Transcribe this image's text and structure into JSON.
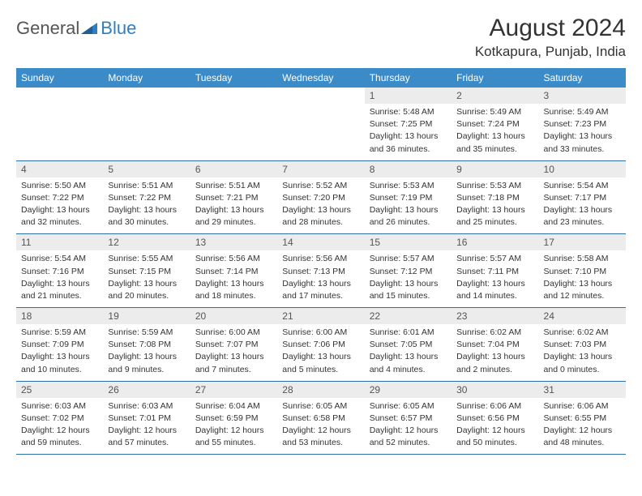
{
  "brand": {
    "part1": "General",
    "part2": "Blue"
  },
  "title": "August 2024",
  "location": "Kotkapura, Punjab, India",
  "colors": {
    "header_bg": "#3b8bc9",
    "header_text": "#ffffff",
    "row_divider": "#2f6fa8",
    "daynum_bg": "#ececec",
    "body_text": "#333333",
    "brand_gray": "#555555",
    "brand_blue": "#2f7fbf"
  },
  "day_labels": [
    "Sunday",
    "Monday",
    "Tuesday",
    "Wednesday",
    "Thursday",
    "Friday",
    "Saturday"
  ],
  "weeks": [
    [
      null,
      null,
      null,
      null,
      {
        "n": "1",
        "sr": "Sunrise: 5:48 AM",
        "ss": "Sunset: 7:25 PM",
        "dl1": "Daylight: 13 hours",
        "dl2": "and 36 minutes."
      },
      {
        "n": "2",
        "sr": "Sunrise: 5:49 AM",
        "ss": "Sunset: 7:24 PM",
        "dl1": "Daylight: 13 hours",
        "dl2": "and 35 minutes."
      },
      {
        "n": "3",
        "sr": "Sunrise: 5:49 AM",
        "ss": "Sunset: 7:23 PM",
        "dl1": "Daylight: 13 hours",
        "dl2": "and 33 minutes."
      }
    ],
    [
      {
        "n": "4",
        "sr": "Sunrise: 5:50 AM",
        "ss": "Sunset: 7:22 PM",
        "dl1": "Daylight: 13 hours",
        "dl2": "and 32 minutes."
      },
      {
        "n": "5",
        "sr": "Sunrise: 5:51 AM",
        "ss": "Sunset: 7:22 PM",
        "dl1": "Daylight: 13 hours",
        "dl2": "and 30 minutes."
      },
      {
        "n": "6",
        "sr": "Sunrise: 5:51 AM",
        "ss": "Sunset: 7:21 PM",
        "dl1": "Daylight: 13 hours",
        "dl2": "and 29 minutes."
      },
      {
        "n": "7",
        "sr": "Sunrise: 5:52 AM",
        "ss": "Sunset: 7:20 PM",
        "dl1": "Daylight: 13 hours",
        "dl2": "and 28 minutes."
      },
      {
        "n": "8",
        "sr": "Sunrise: 5:53 AM",
        "ss": "Sunset: 7:19 PM",
        "dl1": "Daylight: 13 hours",
        "dl2": "and 26 minutes."
      },
      {
        "n": "9",
        "sr": "Sunrise: 5:53 AM",
        "ss": "Sunset: 7:18 PM",
        "dl1": "Daylight: 13 hours",
        "dl2": "and 25 minutes."
      },
      {
        "n": "10",
        "sr": "Sunrise: 5:54 AM",
        "ss": "Sunset: 7:17 PM",
        "dl1": "Daylight: 13 hours",
        "dl2": "and 23 minutes."
      }
    ],
    [
      {
        "n": "11",
        "sr": "Sunrise: 5:54 AM",
        "ss": "Sunset: 7:16 PM",
        "dl1": "Daylight: 13 hours",
        "dl2": "and 21 minutes."
      },
      {
        "n": "12",
        "sr": "Sunrise: 5:55 AM",
        "ss": "Sunset: 7:15 PM",
        "dl1": "Daylight: 13 hours",
        "dl2": "and 20 minutes."
      },
      {
        "n": "13",
        "sr": "Sunrise: 5:56 AM",
        "ss": "Sunset: 7:14 PM",
        "dl1": "Daylight: 13 hours",
        "dl2": "and 18 minutes."
      },
      {
        "n": "14",
        "sr": "Sunrise: 5:56 AM",
        "ss": "Sunset: 7:13 PM",
        "dl1": "Daylight: 13 hours",
        "dl2": "and 17 minutes."
      },
      {
        "n": "15",
        "sr": "Sunrise: 5:57 AM",
        "ss": "Sunset: 7:12 PM",
        "dl1": "Daylight: 13 hours",
        "dl2": "and 15 minutes."
      },
      {
        "n": "16",
        "sr": "Sunrise: 5:57 AM",
        "ss": "Sunset: 7:11 PM",
        "dl1": "Daylight: 13 hours",
        "dl2": "and 14 minutes."
      },
      {
        "n": "17",
        "sr": "Sunrise: 5:58 AM",
        "ss": "Sunset: 7:10 PM",
        "dl1": "Daylight: 13 hours",
        "dl2": "and 12 minutes."
      }
    ],
    [
      {
        "n": "18",
        "sr": "Sunrise: 5:59 AM",
        "ss": "Sunset: 7:09 PM",
        "dl1": "Daylight: 13 hours",
        "dl2": "and 10 minutes."
      },
      {
        "n": "19",
        "sr": "Sunrise: 5:59 AM",
        "ss": "Sunset: 7:08 PM",
        "dl1": "Daylight: 13 hours",
        "dl2": "and 9 minutes."
      },
      {
        "n": "20",
        "sr": "Sunrise: 6:00 AM",
        "ss": "Sunset: 7:07 PM",
        "dl1": "Daylight: 13 hours",
        "dl2": "and 7 minutes."
      },
      {
        "n": "21",
        "sr": "Sunrise: 6:00 AM",
        "ss": "Sunset: 7:06 PM",
        "dl1": "Daylight: 13 hours",
        "dl2": "and 5 minutes."
      },
      {
        "n": "22",
        "sr": "Sunrise: 6:01 AM",
        "ss": "Sunset: 7:05 PM",
        "dl1": "Daylight: 13 hours",
        "dl2": "and 4 minutes."
      },
      {
        "n": "23",
        "sr": "Sunrise: 6:02 AM",
        "ss": "Sunset: 7:04 PM",
        "dl1": "Daylight: 13 hours",
        "dl2": "and 2 minutes."
      },
      {
        "n": "24",
        "sr": "Sunrise: 6:02 AM",
        "ss": "Sunset: 7:03 PM",
        "dl1": "Daylight: 13 hours",
        "dl2": "and 0 minutes."
      }
    ],
    [
      {
        "n": "25",
        "sr": "Sunrise: 6:03 AM",
        "ss": "Sunset: 7:02 PM",
        "dl1": "Daylight: 12 hours",
        "dl2": "and 59 minutes."
      },
      {
        "n": "26",
        "sr": "Sunrise: 6:03 AM",
        "ss": "Sunset: 7:01 PM",
        "dl1": "Daylight: 12 hours",
        "dl2": "and 57 minutes."
      },
      {
        "n": "27",
        "sr": "Sunrise: 6:04 AM",
        "ss": "Sunset: 6:59 PM",
        "dl1": "Daylight: 12 hours",
        "dl2": "and 55 minutes."
      },
      {
        "n": "28",
        "sr": "Sunrise: 6:05 AM",
        "ss": "Sunset: 6:58 PM",
        "dl1": "Daylight: 12 hours",
        "dl2": "and 53 minutes."
      },
      {
        "n": "29",
        "sr": "Sunrise: 6:05 AM",
        "ss": "Sunset: 6:57 PM",
        "dl1": "Daylight: 12 hours",
        "dl2": "and 52 minutes."
      },
      {
        "n": "30",
        "sr": "Sunrise: 6:06 AM",
        "ss": "Sunset: 6:56 PM",
        "dl1": "Daylight: 12 hours",
        "dl2": "and 50 minutes."
      },
      {
        "n": "31",
        "sr": "Sunrise: 6:06 AM",
        "ss": "Sunset: 6:55 PM",
        "dl1": "Daylight: 12 hours",
        "dl2": "and 48 minutes."
      }
    ]
  ]
}
